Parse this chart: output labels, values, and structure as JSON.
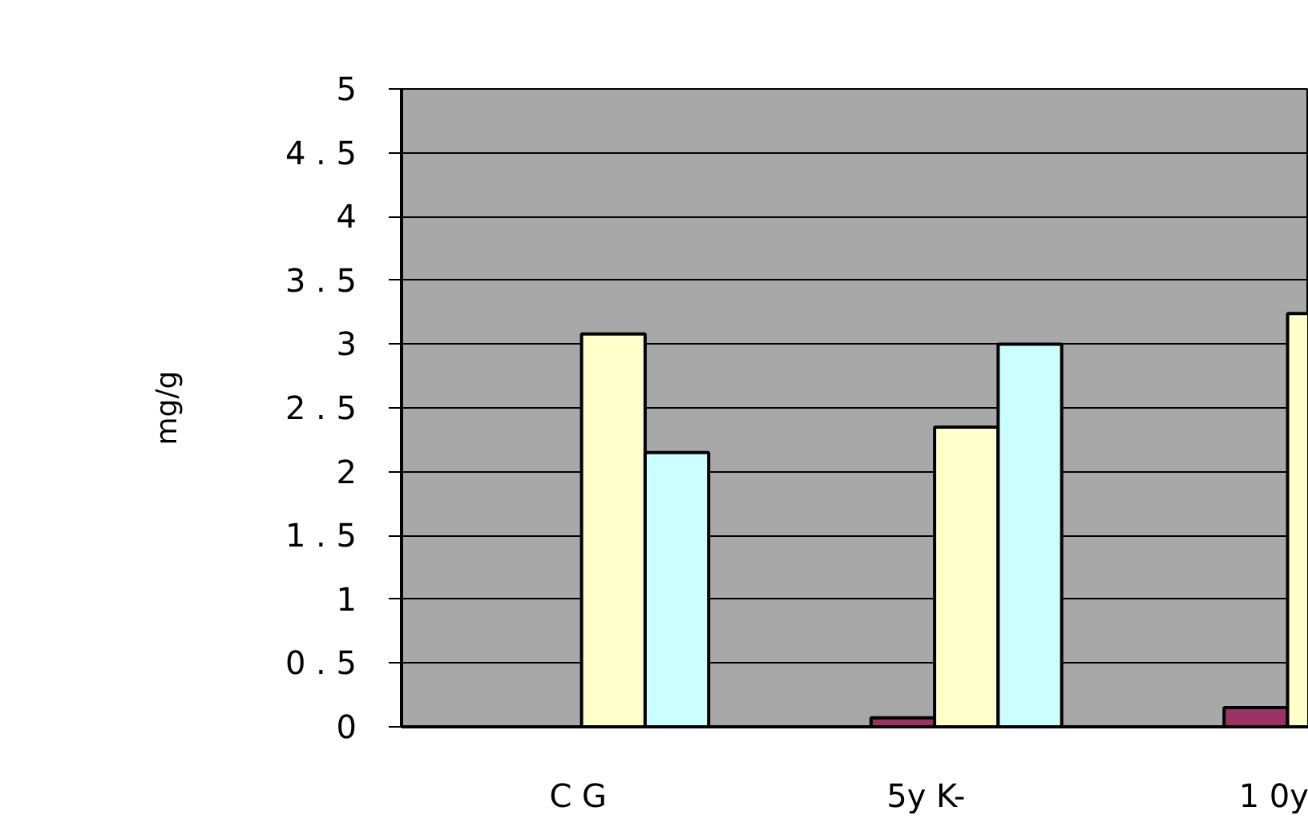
{
  "chart_data": {
    "type": "bar",
    "ylabel": "mg/g",
    "categories": [
      "C G",
      "5y  K-",
      "1 0y"
    ],
    "series": [
      {
        "color": "#993366",
        "values": [
          null,
          0.07,
          0.15
        ]
      },
      {
        "color": "#ffffcc",
        "values": [
          3.08,
          2.35,
          3.24
        ]
      },
      {
        "color": "#ccffff",
        "values": [
          2.15,
          3.0,
          null
        ]
      }
    ],
    "ylim": [
      0,
      5
    ],
    "yticks": [
      0,
      {
        "value": 0.5,
        "label": "0 . 5"
      },
      1,
      {
        "value": 1.5,
        "label": "1 . 5"
      },
      2,
      {
        "value": 2.5,
        "label": "2 . 5"
      },
      3,
      {
        "value": 3.5,
        "label": "3 . 5"
      },
      4,
      {
        "value": 4.5,
        "label": "4 . 5"
      },
      5
    ],
    "grid": "y"
  }
}
